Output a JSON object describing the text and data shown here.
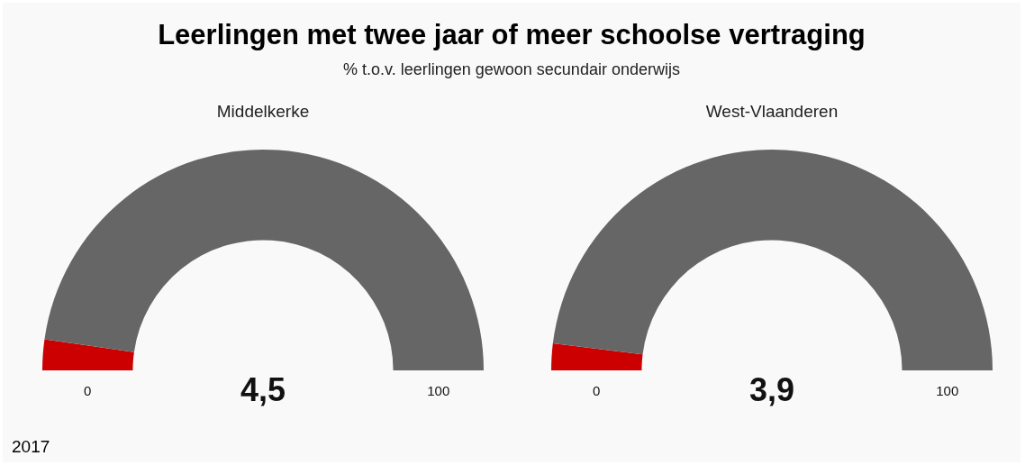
{
  "chart_data": [
    {
      "type": "other",
      "title": "Leerlingen met twee jaar of meer schoolse vertraging",
      "subtitle": "% t.o.v. leerlingen gewoon secundair onderwijs",
      "annotations": [
        "2017"
      ]
    },
    {
      "type": "donut",
      "title": "Middelkerke",
      "categories": [
        null,
        null
      ],
      "values": [
        4.5,
        95.5
      ],
      "colors": [
        "#cc0000",
        "#666666"
      ],
      "annotations": [
        "0",
        "4,5",
        "100"
      ]
    },
    {
      "type": "donut",
      "title": "West-Vlaanderen",
      "categories": [
        null,
        null
      ],
      "values": [
        3.9,
        96.1
      ],
      "colors": [
        "#cc0000",
        "#666666"
      ],
      "annotations": [
        "0",
        "3,9",
        "100"
      ]
    }
  ]
}
